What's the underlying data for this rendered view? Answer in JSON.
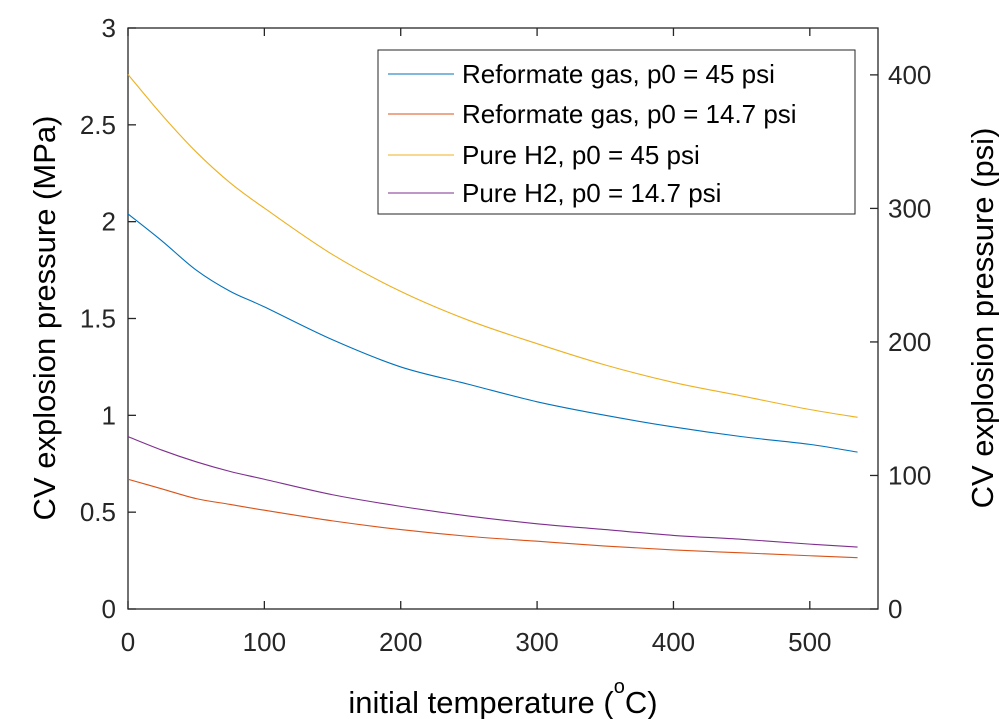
{
  "chart_data": {
    "type": "line",
    "xlabel": "initial temperature (",
    "xlabel_unit_degree": "o",
    "xlabel_unit": "C)",
    "ylabel_left": "CV explosion pressure (MPa)",
    "ylabel_right": "CV explosion pressure (psi)",
    "xlim": [
      0,
      550
    ],
    "ylim_left": [
      0,
      3
    ],
    "ylim_right": [
      0,
      435.11
    ],
    "xticks": [
      0,
      100,
      200,
      300,
      400,
      500
    ],
    "xtick_labels": [
      "0",
      "100",
      "200",
      "300",
      "400",
      "500"
    ],
    "yticks_left": [
      0,
      0.5,
      1,
      1.5,
      2,
      2.5,
      3
    ],
    "ytick_labels_left": [
      "0",
      "0.5",
      "1",
      "1.5",
      "2",
      "2.5",
      "3"
    ],
    "yticks_right": [
      0,
      100,
      200,
      300,
      400
    ],
    "ytick_labels_right": [
      "0",
      "100",
      "200",
      "300",
      "400"
    ],
    "grid": false,
    "legend_position": "top-right",
    "x": [
      0,
      25,
      50,
      75,
      100,
      150,
      200,
      250,
      300,
      350,
      400,
      450,
      500,
      535
    ],
    "series": [
      {
        "name": "Reformate gas, p0 = 45 psi",
        "color": "#0072BD",
        "values": [
          2.04,
          1.9,
          1.75,
          1.64,
          1.56,
          1.39,
          1.25,
          1.16,
          1.07,
          1.0,
          0.94,
          0.89,
          0.85,
          0.81
        ]
      },
      {
        "name": "Reformate gas, p0 = 14.7 psi",
        "color": "#D95319",
        "values": [
          0.67,
          0.62,
          0.57,
          0.54,
          0.51,
          0.455,
          0.41,
          0.375,
          0.35,
          0.325,
          0.305,
          0.29,
          0.275,
          0.265
        ]
      },
      {
        "name": "Pure H2, p0 = 45 psi",
        "color": "#EDB120",
        "values": [
          2.76,
          2.55,
          2.36,
          2.2,
          2.07,
          1.83,
          1.64,
          1.49,
          1.37,
          1.26,
          1.17,
          1.1,
          1.03,
          0.99
        ]
      },
      {
        "name": "Pure H2, p0 = 14.7 psi",
        "color": "#7E2F8E",
        "values": [
          0.89,
          0.82,
          0.76,
          0.71,
          0.67,
          0.59,
          0.53,
          0.48,
          0.44,
          0.41,
          0.38,
          0.36,
          0.335,
          0.32
        ]
      }
    ]
  }
}
